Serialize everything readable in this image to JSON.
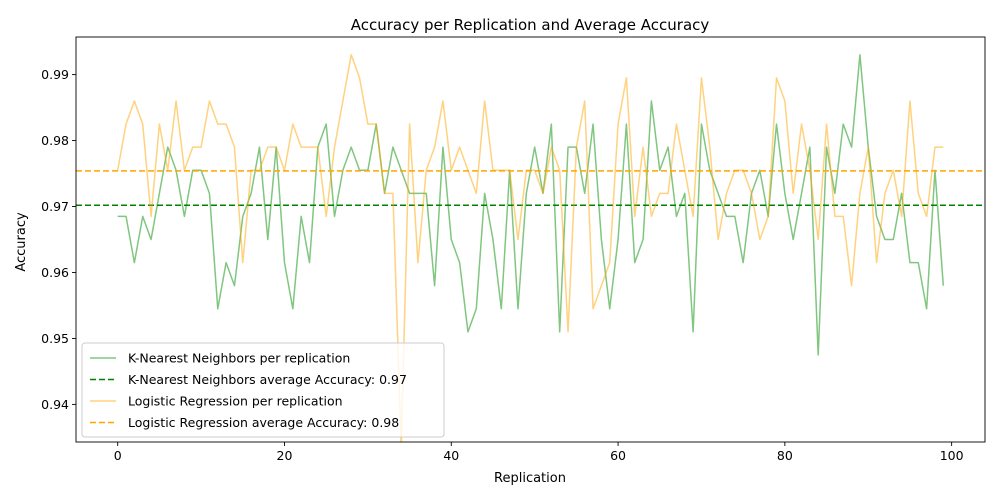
{
  "chart_data": {
    "type": "line",
    "title": "Accuracy per Replication and Average Accuracy",
    "xlabel": "Replication",
    "ylabel": "Accuracy",
    "xlim": [
      -5,
      104
    ],
    "ylim": [
      0.9343,
      0.9957
    ],
    "xticks": [
      0,
      20,
      40,
      60,
      80,
      100
    ],
    "yticks": [
      0.94,
      0.95,
      0.96,
      0.97,
      0.98,
      0.99
    ],
    "legend_position": "lower-left",
    "grid": false,
    "series": [
      {
        "name": "K-Nearest Neighbors per replication",
        "color": "#2ca02c",
        "style": "solid",
        "opacity": 0.6,
        "x_start": 0,
        "values": [
          0.9685,
          0.9685,
          0.9615,
          0.9685,
          0.965,
          0.972,
          0.979,
          0.9755,
          0.9685,
          0.9755,
          0.9755,
          0.972,
          0.9545,
          0.9615,
          0.958,
          0.9685,
          0.972,
          0.979,
          0.965,
          0.979,
          0.9615,
          0.9545,
          0.9685,
          0.9615,
          0.979,
          0.9825,
          0.9685,
          0.9755,
          0.979,
          0.9755,
          0.9755,
          0.9825,
          0.972,
          0.979,
          0.9755,
          0.972,
          0.972,
          0.972,
          0.958,
          0.979,
          0.965,
          0.9615,
          0.951,
          0.9545,
          0.972,
          0.965,
          0.9545,
          0.9755,
          0.9545,
          0.972,
          0.979,
          0.972,
          0.9825,
          0.951,
          0.979,
          0.979,
          0.972,
          0.9825,
          0.965,
          0.9545,
          0.965,
          0.9825,
          0.9615,
          0.965,
          0.986,
          0.9755,
          0.979,
          0.9685,
          0.972,
          0.951,
          0.9825,
          0.9755,
          0.972,
          0.9685,
          0.9685,
          0.9615,
          0.972,
          0.9755,
          0.9685,
          0.9825,
          0.972,
          0.965,
          0.972,
          0.979,
          0.9475,
          0.979,
          0.972,
          0.9825,
          0.979,
          0.993,
          0.979,
          0.9685,
          0.965,
          0.965,
          0.972,
          0.9615,
          0.9615,
          0.9545,
          0.9755,
          0.958
        ]
      },
      {
        "name": "K-Nearest Neighbors average Accuracy: 0.97",
        "color": "#008000",
        "style": "dashed",
        "opacity": 1,
        "constant": 0.9702
      },
      {
        "name": "Logistic Regression per replication",
        "color": "#ffa500",
        "style": "solid",
        "opacity": 0.5,
        "x_start": 0,
        "values": [
          0.9755,
          0.9825,
          0.986,
          0.9825,
          0.9685,
          0.9825,
          0.9755,
          0.986,
          0.9755,
          0.979,
          0.979,
          0.986,
          0.9825,
          0.9825,
          0.979,
          0.9615,
          0.9755,
          0.9755,
          0.979,
          0.979,
          0.9755,
          0.9825,
          0.979,
          0.979,
          0.979,
          0.9685,
          0.979,
          0.986,
          0.993,
          0.9895,
          0.9825,
          0.9825,
          0.972,
          0.972,
          0.9335,
          0.9825,
          0.9615,
          0.9755,
          0.979,
          0.986,
          0.9755,
          0.979,
          0.9755,
          0.972,
          0.986,
          0.9755,
          0.9755,
          0.9755,
          0.965,
          0.9755,
          0.9755,
          0.972,
          0.979,
          0.9755,
          0.951,
          0.979,
          0.986,
          0.9545,
          0.958,
          0.9615,
          0.9825,
          0.9895,
          0.9685,
          0.979,
          0.9685,
          0.972,
          0.972,
          0.9825,
          0.9755,
          0.9685,
          0.9895,
          0.979,
          0.965,
          0.972,
          0.9755,
          0.9755,
          0.972,
          0.965,
          0.9685,
          0.9895,
          0.986,
          0.972,
          0.9825,
          0.9755,
          0.965,
          0.9825,
          0.9685,
          0.9685,
          0.958,
          0.972,
          0.979,
          0.9615,
          0.972,
          0.9755,
          0.9685,
          0.986,
          0.972,
          0.9685,
          0.979,
          0.979
        ]
      },
      {
        "name": "Logistic Regression average Accuracy: 0.98",
        "color": "#ffa500",
        "style": "dashed",
        "opacity": 1,
        "constant": 0.9754
      }
    ]
  }
}
